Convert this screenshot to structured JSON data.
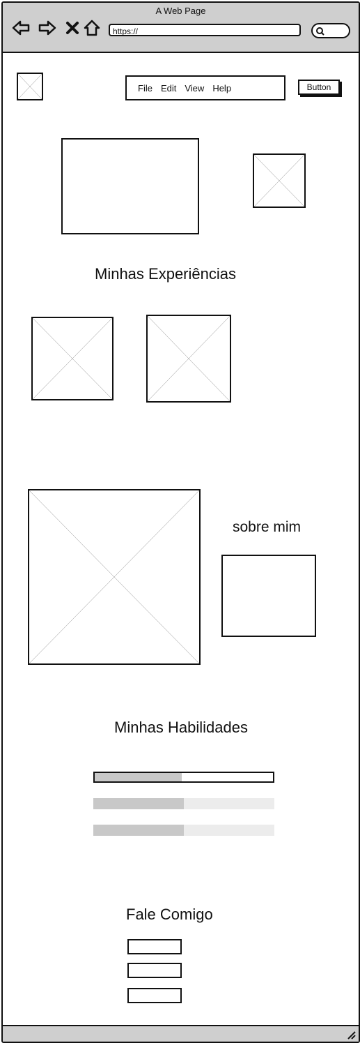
{
  "browser": {
    "title": "A Web Page",
    "url": "https://"
  },
  "nav": {
    "menu_items": [
      "File",
      "Edit",
      "View",
      "Help"
    ],
    "button_label": "Button"
  },
  "sections": {
    "experiences_title": "Minhas Experiências",
    "about_title": "sobre mim",
    "skills_title": "Minhas Habilidades",
    "contact_title": "Fale Comigo"
  },
  "skills": [
    {
      "progress": 0.49
    },
    {
      "progress": 0.5
    },
    {
      "progress": 0.5
    }
  ]
}
